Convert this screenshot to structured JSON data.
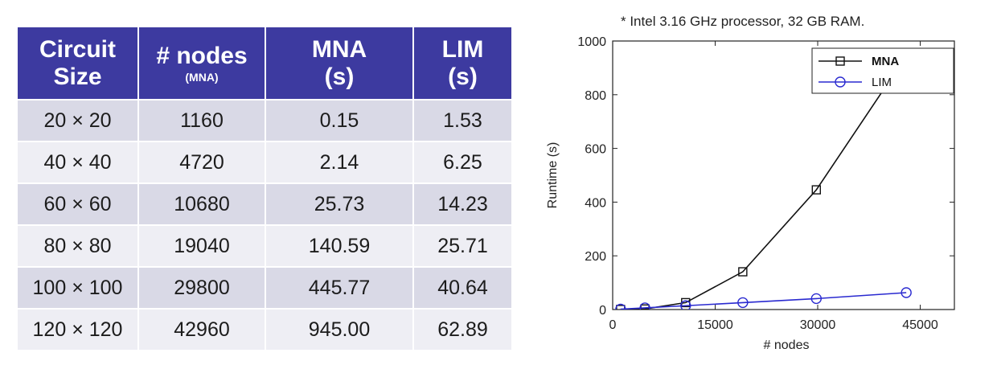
{
  "table": {
    "headers": [
      {
        "main": "Circuit Size",
        "sub": ""
      },
      {
        "main": "# nodes",
        "sub": "(MNA)"
      },
      {
        "main": "MNA (s)",
        "sub": ""
      },
      {
        "main": "LIM (s)",
        "sub": ""
      }
    ],
    "header_lines": [
      [
        "Circuit",
        "Size"
      ],
      [
        "# nodes",
        "(MNA)"
      ],
      [
        "MNA",
        "(s)"
      ],
      [
        "LIM",
        "(s)"
      ]
    ],
    "rows": [
      [
        "20 × 20",
        "1160",
        "0.15",
        "1.53"
      ],
      [
        "40 × 40",
        "4720",
        "2.14",
        "6.25"
      ],
      [
        "60 × 60",
        "10680",
        "25.73",
        "14.23"
      ],
      [
        "80 × 80",
        "19040",
        "140.59",
        "25.71"
      ],
      [
        "100 × 100",
        "29800",
        "445.77",
        "40.64"
      ],
      [
        "120 × 120",
        "42960",
        "945.00",
        "62.89"
      ]
    ],
    "colors": {
      "header_bg": "#3d3aa0",
      "row_odd": "#d9d9e6",
      "row_even": "#eeeef4"
    }
  },
  "chart_data": {
    "type": "line",
    "note": "* Intel 3.16 GHz processor, 32 GB RAM.",
    "xlabel": "# nodes",
    "ylabel": "Runtime (s)",
    "xlim": [
      0,
      50000
    ],
    "ylim": [
      0,
      1000
    ],
    "xticks": [
      0,
      15000,
      30000,
      45000
    ],
    "yticks": [
      0,
      200,
      400,
      600,
      800,
      1000
    ],
    "legend_position": "top-right",
    "series": [
      {
        "name": "MNA",
        "marker": "square",
        "color": "#111111",
        "x": [
          1160,
          4720,
          10680,
          19040,
          29800,
          42960
        ],
        "y": [
          0.15,
          2.14,
          25.73,
          140.59,
          445.77,
          945.0
        ]
      },
      {
        "name": "LIM",
        "marker": "circle",
        "color": "#2a2ad0",
        "x": [
          1160,
          4720,
          10680,
          19040,
          29800,
          42960
        ],
        "y": [
          1.53,
          6.25,
          14.23,
          25.71,
          40.64,
          62.89
        ]
      }
    ]
  }
}
